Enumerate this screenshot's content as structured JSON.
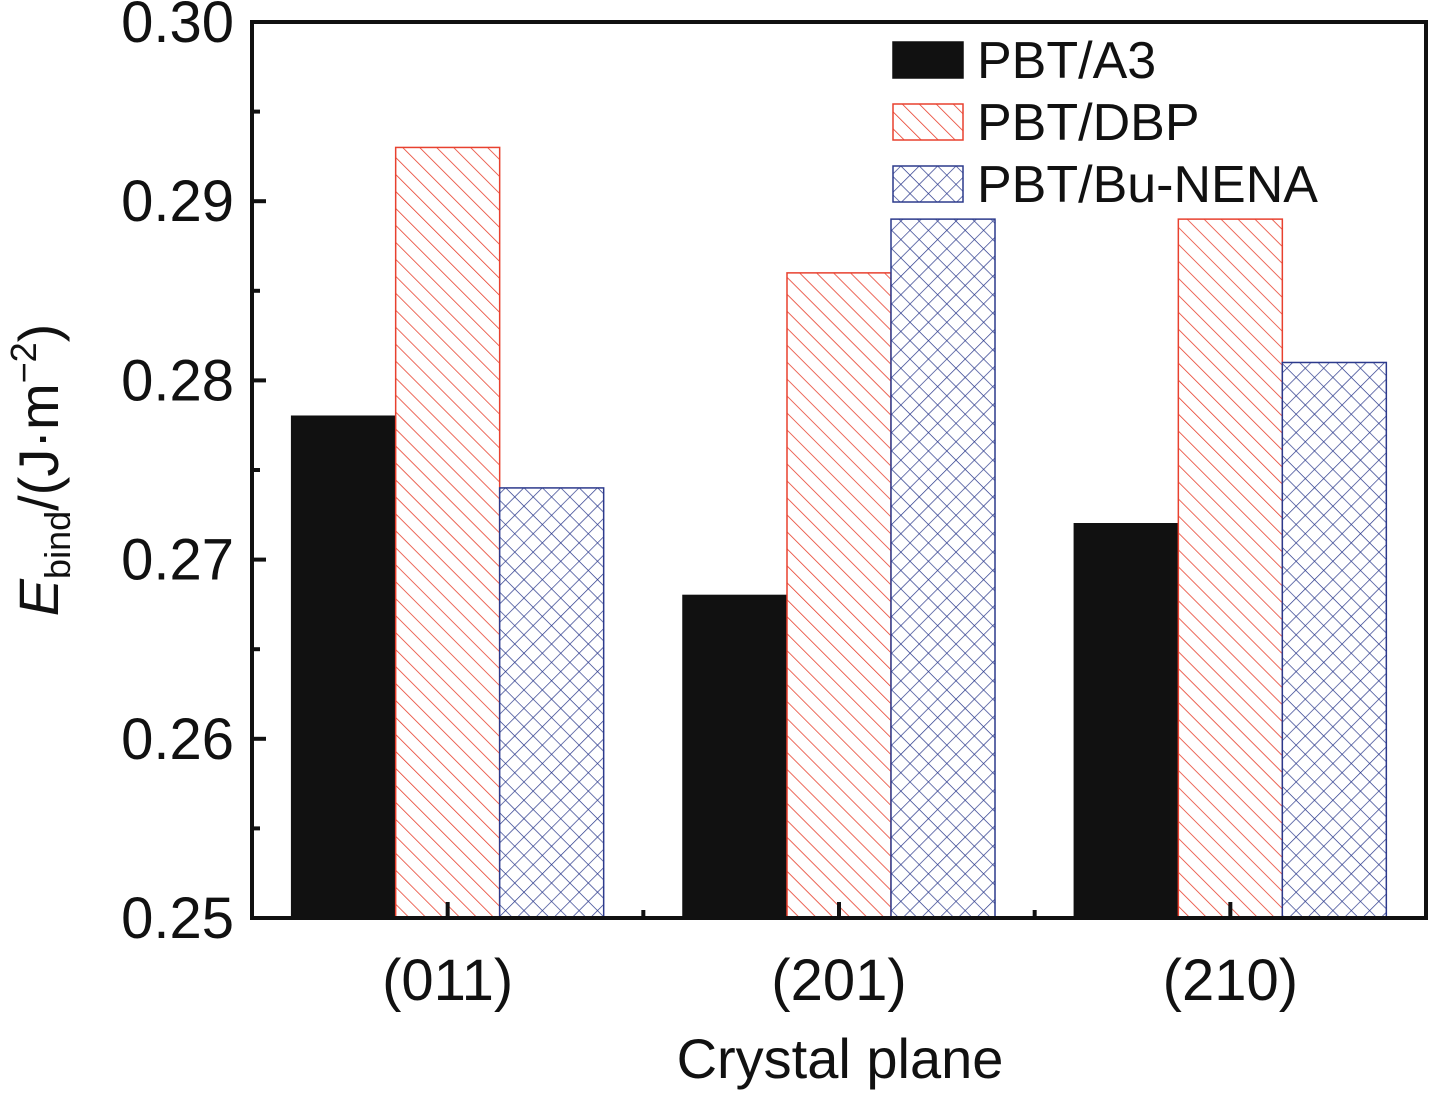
{
  "chart_data": {
    "type": "bar",
    "xlabel": "Crystal plane",
    "ylabel": {
      "symbol": "E",
      "subscript": "bind",
      "unit_prefix": "/(J·m",
      "unit_exponent": "−2",
      "unit_suffix": ")"
    },
    "categories": [
      "(011)",
      "(201)",
      "(210)"
    ],
    "series": [
      {
        "name": "PBT/A3",
        "values": [
          0.278,
          0.268,
          0.272
        ],
        "color": "#111111",
        "pattern": "solid"
      },
      {
        "name": "PBT/DBP",
        "values": [
          0.293,
          0.286,
          0.289
        ],
        "color": "#e8412f",
        "pattern": "diagonal-hatch"
      },
      {
        "name": "PBT/Bu-NENA",
        "values": [
          0.274,
          0.289,
          0.281
        ],
        "color": "#2c3a8c",
        "pattern": "crosshatch"
      }
    ],
    "ylim": [
      0.25,
      0.3
    ],
    "yticks": [
      "0.25",
      "0.26",
      "0.27",
      "0.28",
      "0.29",
      "0.30"
    ],
    "grid": false,
    "legend_position": "top-right"
  }
}
